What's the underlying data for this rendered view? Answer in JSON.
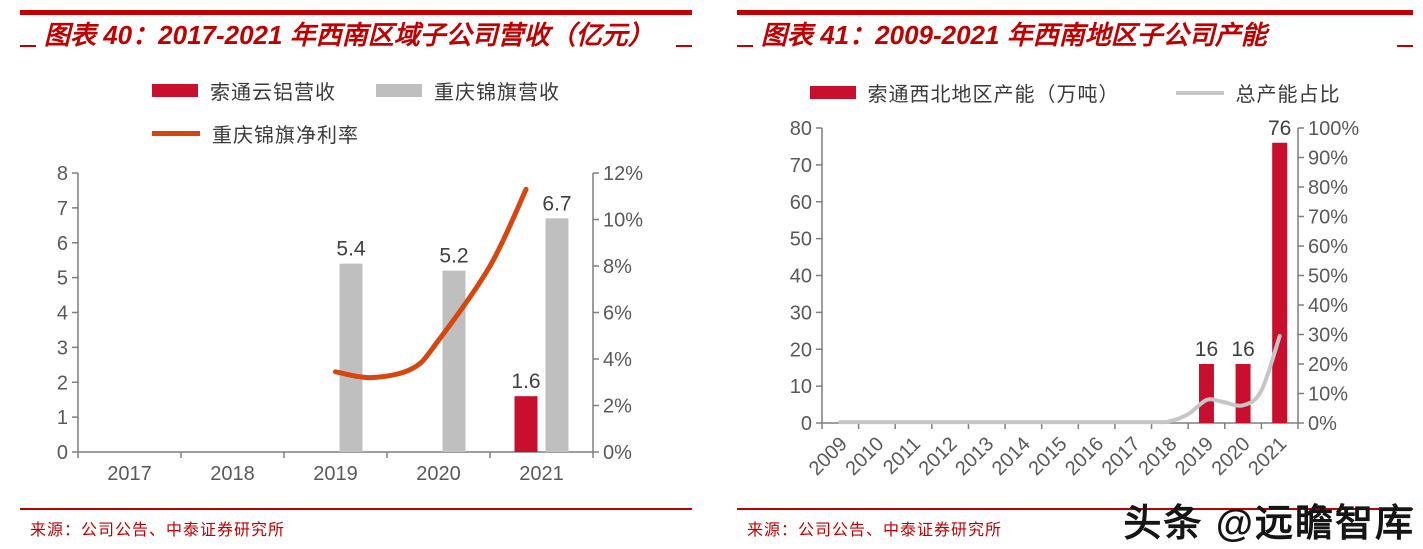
{
  "watermark": "头条 @远瞻智库",
  "figures": [
    {
      "caption": "图表 40：2017-2021 年西南区域子公司营收（亿元）",
      "source": "来源：公司公告、中泰证券研究所",
      "accent_color": "#C00000",
      "legend": [
        {
          "label": "索通云铝营收",
          "type": "bar",
          "color": "#C8102E"
        },
        {
          "label": "重庆锦旗营收",
          "type": "bar",
          "color": "#BFBFBF"
        },
        {
          "label": "重庆锦旗净利率",
          "type": "line",
          "color": "#D5470E"
        }
      ]
    },
    {
      "caption": "图表 41：2009-2021 年西南地区子公司产能",
      "source": "来源：公司公告、中泰证券研究所",
      "accent_color": "#C00000",
      "legend": [
        {
          "label": "索通西北地区产能（万吨）",
          "type": "bar",
          "color": "#C8102E"
        },
        {
          "label": "总产能占比",
          "type": "line",
          "color": "#C6C6C6"
        }
      ]
    }
  ],
  "chart_data": [
    {
      "type": "bar",
      "title": "图表 40：2017-2021 年西南区域子公司营收（亿元）",
      "categories": [
        "2017",
        "2018",
        "2019",
        "2020",
        "2021"
      ],
      "series": [
        {
          "name": "索通云铝营收",
          "kind": "bar",
          "axis": "left",
          "color": "#C8102E",
          "values": [
            null,
            null,
            null,
            null,
            1.6
          ],
          "labels": [
            "",
            "",
            "",
            "",
            "1.6"
          ]
        },
        {
          "name": "重庆锦旗营收",
          "kind": "bar",
          "axis": "left",
          "color": "#BFBFBF",
          "values": [
            null,
            null,
            5.4,
            5.2,
            6.7
          ],
          "labels": [
            "",
            "",
            "5.4",
            "5.2",
            "6.7"
          ]
        },
        {
          "name": "重庆锦旗净利率",
          "kind": "line",
          "axis": "right",
          "color": "#D5470E",
          "values": [
            null,
            null,
            3.5,
            4.8,
            11.3
          ],
          "points": [
            [
              2,
              3.45
            ],
            [
              2.35,
              3.2
            ],
            [
              2.75,
              3.6
            ],
            [
              3,
              4.8
            ],
            [
              3.5,
              8.0
            ],
            [
              3.85,
              11.3
            ]
          ]
        }
      ],
      "left_axis": {
        "min": 0,
        "max": 8,
        "ticks": [
          "0",
          "1",
          "2",
          "3",
          "4",
          "5",
          "6",
          "7",
          "8"
        ]
      },
      "right_axis": {
        "min": 0,
        "max": 12,
        "ticks": [
          "0%",
          "2%",
          "4%",
          "6%",
          "8%",
          "10%",
          "12%"
        ]
      },
      "grid": false,
      "legend_position": "top",
      "xlabel": "",
      "ylabel": ""
    },
    {
      "type": "bar",
      "title": "图表 41：2009-2021 年西南地区子公司产能",
      "categories": [
        "2009",
        "2010",
        "2011",
        "2012",
        "2013",
        "2014",
        "2015",
        "2016",
        "2017",
        "2018",
        "2019",
        "2020",
        "2021"
      ],
      "series": [
        {
          "name": "索通西北地区产能（万吨）",
          "kind": "bar",
          "axis": "left",
          "color": "#C8102E",
          "values": [
            null,
            null,
            null,
            null,
            null,
            null,
            null,
            null,
            null,
            null,
            16,
            16,
            76
          ],
          "labels": [
            "",
            "",
            "",
            "",
            "",
            "",
            "",
            "",
            "",
            "",
            "16",
            "16",
            "76"
          ]
        },
        {
          "name": "总产能占比",
          "kind": "line",
          "axis": "right",
          "color": "#C6C6C6",
          "values": [
            0,
            0,
            0,
            0,
            0,
            0,
            0,
            0,
            0,
            0.5,
            8,
            6,
            30
          ],
          "points": [
            [
              0,
              0.3
            ],
            [
              3,
              0.3
            ],
            [
              6,
              0.3
            ],
            [
              8.5,
              0.3
            ],
            [
              9,
              0.6
            ],
            [
              9.5,
              3
            ],
            [
              10,
              7.8
            ],
            [
              10.4,
              7.3
            ],
            [
              11,
              6.0
            ],
            [
              11.5,
              11
            ],
            [
              12,
              29.5
            ]
          ]
        }
      ],
      "left_axis": {
        "min": 0,
        "max": 80,
        "ticks": [
          "0",
          "10",
          "20",
          "30",
          "40",
          "50",
          "60",
          "70",
          "80"
        ]
      },
      "right_axis": {
        "min": 0,
        "max": 100,
        "ticks": [
          "0%",
          "10%",
          "20%",
          "30%",
          "40%",
          "50%",
          "60%",
          "70%",
          "80%",
          "90%",
          "100%"
        ]
      },
      "grid": false,
      "legend_position": "top",
      "x_label_rotation": -45,
      "xlabel": "",
      "ylabel": ""
    }
  ]
}
